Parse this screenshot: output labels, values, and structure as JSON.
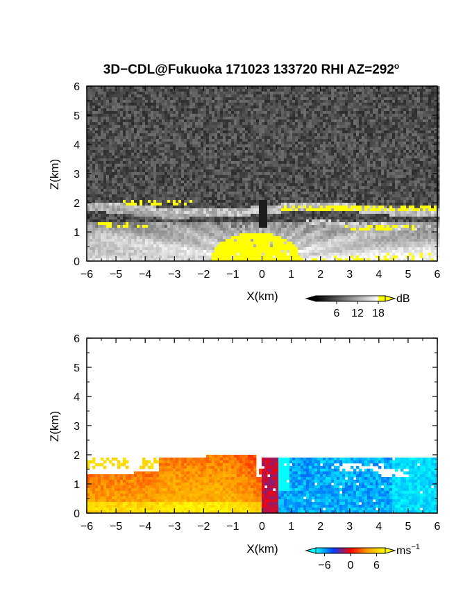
{
  "figure": {
    "title": "3D−CDL@Fukuoka 171023 133720 RHI AZ=292",
    "title_superscript": "o"
  },
  "chart_data": [
    {
      "type": "heatmap",
      "name": "snr-panel",
      "xlabel": "X(km)",
      "ylabel": "Z(km)",
      "xlim": [
        -6,
        6
      ],
      "ylim": [
        0,
        6
      ],
      "x_ticks": [
        "−6",
        "−5",
        "−4",
        "−3",
        "−2",
        "−1",
        "0",
        "1",
        "2",
        "3",
        "4",
        "5",
        "6"
      ],
      "y_ticks": [
        "0",
        "1",
        "2",
        "3",
        "4",
        "5",
        "6"
      ],
      "grid": false,
      "colorbar": {
        "unit": "dB",
        "ticks": [
          "6",
          "12",
          "18"
        ],
        "range": [
          0,
          20
        ],
        "colors": [
          "#000000",
          "#ffffff",
          "#ffff00"
        ]
      },
      "background": "noise",
      "features": [
        {
          "kind": "strong-return",
          "x": [
            -1.3,
            1.5
          ],
          "z": [
            0,
            1.15
          ]
        },
        {
          "kind": "aerosol-layer",
          "x": [
            -6,
            6
          ],
          "z": [
            0,
            1.3
          ]
        },
        {
          "kind": "elevated-layer",
          "x": [
            -6,
            6
          ],
          "z": [
            1.6,
            2.0
          ]
        },
        {
          "kind": "yellow-patches",
          "x": [
            0.7,
            6
          ],
          "z": [
            1.65,
            1.95
          ]
        },
        {
          "kind": "yellow-patches",
          "x": [
            -4.8,
            -2.4
          ],
          "z": [
            1.9,
            2.05
          ]
        },
        {
          "kind": "shadow",
          "x": [
            -0.1,
            0.2
          ],
          "z": [
            1.2,
            2.1
          ]
        }
      ]
    },
    {
      "type": "heatmap",
      "name": "velocity-panel",
      "xlabel": "X(km)",
      "ylabel": "Z(km)",
      "xlim": [
        -6,
        6
      ],
      "ylim": [
        0,
        6
      ],
      "x_ticks": [
        "−6",
        "−5",
        "−4",
        "−3",
        "−2",
        "−1",
        "0",
        "1",
        "2",
        "3",
        "4",
        "5",
        "6"
      ],
      "y_ticks": [
        "0",
        "1",
        "2",
        "3",
        "4",
        "5",
        "6"
      ],
      "grid": false,
      "colorbar": {
        "unit": "ms",
        "unit_superscript": "−1",
        "ticks": [
          "−6",
          "0",
          "6"
        ],
        "range": [
          -8,
          8
        ],
        "colors": [
          "#00ffff",
          "#0040ff",
          "#ff0000",
          "#ffa000",
          "#ffff00"
        ]
      },
      "features": [
        {
          "kind": "approaching-flow",
          "x": [
            -6,
            0
          ],
          "z": [
            0,
            2.0
          ],
          "velocity": 5
        },
        {
          "kind": "receding-flow",
          "x": [
            0,
            6
          ],
          "z": [
            0,
            1.95
          ],
          "velocity": -7
        }
      ]
    }
  ]
}
